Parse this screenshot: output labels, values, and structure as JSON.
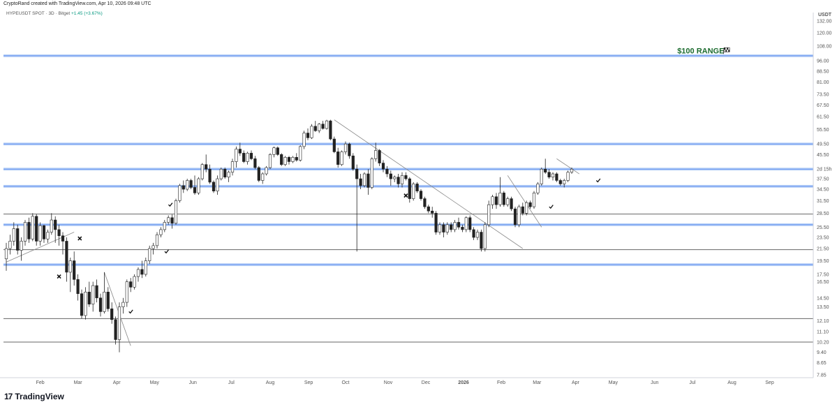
{
  "header": {
    "created_by": "CryptoRand created with TradingView.com, Apr 10, 2026 09:48 UTC",
    "symbol": "HYPEUSDT SPOT · 3D · Bitget",
    "change": "+1.45 (+3.67%)"
  },
  "brand": {
    "logo": "17",
    "name": "TradingView"
  },
  "chart_data": {
    "type": "candlestick",
    "title": "HYPEUSDT SPOT · 3D · Bitget",
    "price_unit": "USDT",
    "y_scale": "log",
    "ylim": [
      7.85,
      132.0
    ],
    "y_ticks": [
      "132.00",
      "120.00",
      "108.00",
      "96.00",
      "88.50",
      "81.00",
      "73.50",
      "67.50",
      "61.50",
      "55.50",
      "49.50",
      "45.50",
      "2d 15h",
      "37.50",
      "34.50",
      "31.50",
      "28.50",
      "25.50",
      "23.50",
      "21.50",
      "19.50",
      "17.50",
      "16.50",
      "14.50",
      "13.50",
      "12.10",
      "11.10",
      "10.20",
      "9.40",
      "8.65",
      "7.85"
    ],
    "y_tick_values": [
      132,
      120,
      108,
      96,
      88.5,
      81,
      73.5,
      67.5,
      61.5,
      55.5,
      49.5,
      45.5,
      40.5,
      37.5,
      34.5,
      31.5,
      28.5,
      25.5,
      23.5,
      21.5,
      19.5,
      17.5,
      16.5,
      14.5,
      13.5,
      12.1,
      11.1,
      10.2,
      9.4,
      8.65,
      7.85
    ],
    "x_ticks": [
      "Feb",
      "Mar",
      "Apr",
      "May",
      "Jun",
      "Jul",
      "Aug",
      "Sep",
      "Oct",
      "Nov",
      "Dec",
      "2026",
      "Feb",
      "Mar",
      "Apr",
      "May",
      "Jun",
      "Jul",
      "Aug",
      "Sep"
    ],
    "x_tick_positions": [
      9.0,
      19.0,
      29.3,
      39.3,
      49.5,
      59.7,
      70.0,
      80.2,
      90.0,
      101.3,
      111.3,
      121.3,
      131.3,
      140.8,
      151.0,
      161.0,
      172.0,
      182.0,
      192.5,
      202.5
    ],
    "bars_per_month": 10,
    "horizontal_levels": [
      {
        "price": 100.0,
        "color": "#5b8def"
      },
      {
        "price": 49.5,
        "color": "#5b8def"
      },
      {
        "price": 40.5,
        "color": "#5b8def"
      },
      {
        "price": 35.3,
        "color": "#5b8def"
      },
      {
        "price": 28.3,
        "color": "#666666"
      },
      {
        "price": 26.0,
        "color": "#5b8def"
      },
      {
        "price": 21.3,
        "color": "#666666"
      },
      {
        "price": 18.9,
        "color": "#5b8def"
      },
      {
        "price": 12.3,
        "color": "#666666"
      },
      {
        "price": 10.2,
        "color": "#666666"
      }
    ],
    "trendlines": [
      {
        "from": [
          0,
          19.3
        ],
        "to": [
          18,
          24.5
        ]
      },
      {
        "from": [
          87,
          60
        ],
        "to": [
          137,
          21.5
        ]
      },
      {
        "from": [
          133,
          38.5
        ],
        "to": [
          142,
          25.5
        ]
      },
      {
        "from": [
          26,
          17.8
        ],
        "to": [
          33,
          9.9
        ]
      },
      {
        "from": [
          146,
          44
        ],
        "to": [
          152,
          39
        ]
      }
    ],
    "annotations": [
      {
        "text": "$100 RANGE",
        "bar": 178,
        "price": 102
      },
      {
        "symbol": "cross",
        "bar": 19.5,
        "price": 23.3
      },
      {
        "symbol": "cross",
        "bar": 14,
        "price": 17.2
      },
      {
        "symbol": "cross",
        "bar": 106,
        "price": 32.8
      },
      {
        "symbol": "check",
        "bar": 33,
        "price": 13.0
      },
      {
        "symbol": "check",
        "bar": 42.5,
        "price": 21.0
      },
      {
        "symbol": "check",
        "bar": 43.5,
        "price": 30.5
      },
      {
        "symbol": "check",
        "bar": 144.5,
        "price": 30.0
      },
      {
        "symbol": "check",
        "bar": 157,
        "price": 37.0
      }
    ],
    "candles": [
      [
        19.8,
        22.5,
        18.0,
        21.5
      ],
      [
        21.5,
        24.0,
        20.5,
        22.8
      ],
      [
        22.8,
        26.5,
        22.0,
        25.2
      ],
      [
        25.2,
        26.0,
        20.5,
        21.2
      ],
      [
        21.2,
        23.5,
        19.5,
        22.8
      ],
      [
        22.8,
        27.0,
        22.0,
        26.5
      ],
      [
        26.5,
        27.5,
        22.5,
        23.2
      ],
      [
        23.2,
        28.5,
        22.8,
        27.8
      ],
      [
        27.8,
        28.3,
        22.0,
        22.8
      ],
      [
        22.8,
        26.5,
        22.0,
        25.8
      ],
      [
        25.8,
        26.0,
        22.5,
        23.2
      ],
      [
        23.2,
        25.0,
        22.5,
        24.5
      ],
      [
        24.5,
        28.5,
        24.0,
        27.0
      ],
      [
        27.0,
        27.8,
        22.5,
        25.0
      ],
      [
        25.0,
        26.0,
        22.0,
        23.8
      ],
      [
        23.8,
        24.5,
        20.5,
        22.8
      ],
      [
        22.8,
        23.5,
        16.5,
        17.8
      ],
      [
        17.8,
        20.0,
        15.2,
        19.5
      ],
      [
        19.5,
        21.0,
        16.0,
        16.8
      ],
      [
        16.8,
        17.5,
        14.2,
        15.0
      ],
      [
        15.0,
        15.5,
        12.3,
        12.6
      ],
      [
        12.6,
        15.8,
        12.2,
        15.2
      ],
      [
        15.2,
        16.5,
        13.5,
        13.8
      ],
      [
        13.8,
        16.5,
        13.0,
        16.0
      ],
      [
        16.0,
        16.8,
        14.0,
        14.5
      ],
      [
        14.5,
        15.0,
        12.5,
        13.0
      ],
      [
        13.0,
        17.8,
        12.8,
        15.2
      ],
      [
        15.2,
        15.8,
        13.0,
        13.3
      ],
      [
        13.3,
        14.0,
        11.8,
        12.2
      ],
      [
        12.2,
        12.5,
        10.0,
        10.4
      ],
      [
        10.4,
        14.0,
        9.4,
        13.5
      ],
      [
        13.5,
        14.5,
        12.8,
        14.0
      ],
      [
        14.0,
        16.8,
        13.5,
        16.5
      ],
      [
        16.5,
        17.0,
        15.2,
        15.8
      ],
      [
        15.8,
        17.5,
        15.5,
        17.2
      ],
      [
        17.2,
        18.5,
        16.5,
        18.2
      ],
      [
        18.2,
        19.5,
        17.0,
        17.5
      ],
      [
        17.5,
        20.0,
        17.2,
        19.5
      ],
      [
        19.5,
        22.0,
        19.0,
        21.5
      ],
      [
        21.5,
        22.5,
        20.5,
        22.0
      ],
      [
        22.0,
        24.5,
        21.5,
        24.0
      ],
      [
        24.0,
        25.5,
        23.5,
        25.0
      ],
      [
        25.0,
        27.0,
        24.5,
        26.5
      ],
      [
        26.5,
        28.0,
        26.0,
        27.5
      ],
      [
        27.5,
        28.2,
        25.2,
        26.3
      ],
      [
        26.3,
        32.0,
        26.0,
        31.5
      ],
      [
        31.5,
        36.0,
        31.0,
        35.5
      ],
      [
        35.5,
        37.0,
        33.5,
        34.5
      ],
      [
        34.5,
        37.5,
        34.0,
        37.0
      ],
      [
        37.0,
        37.5,
        34.5,
        35.0
      ],
      [
        35.0,
        38.5,
        33.0,
        33.5
      ],
      [
        33.5,
        38.0,
        33.0,
        37.5
      ],
      [
        37.5,
        42.5,
        37.0,
        42.0
      ],
      [
        42.0,
        45.5,
        39.5,
        40.5
      ],
      [
        40.5,
        42.0,
        36.0,
        36.5
      ],
      [
        36.5,
        37.0,
        33.5,
        34.0
      ],
      [
        34.0,
        38.5,
        33.0,
        37.5
      ],
      [
        37.5,
        41.0,
        37.0,
        40.5
      ],
      [
        40.5,
        41.0,
        37.5,
        38.0
      ],
      [
        38.0,
        40.0,
        36.5,
        39.5
      ],
      [
        39.5,
        44.0,
        38.5,
        43.0
      ],
      [
        43.0,
        48.5,
        41.0,
        47.5
      ],
      [
        47.5,
        50.0,
        45.0,
        46.0
      ],
      [
        46.0,
        47.0,
        42.5,
        43.0
      ],
      [
        43.0,
        46.5,
        42.0,
        46.0
      ],
      [
        46.0,
        47.0,
        43.5,
        44.0
      ],
      [
        44.0,
        45.0,
        40.5,
        41.0
      ],
      [
        41.0,
        41.5,
        36.5,
        37.0
      ],
      [
        37.0,
        39.5,
        36.0,
        39.0
      ],
      [
        39.0,
        41.5,
        38.5,
        41.0
      ],
      [
        41.0,
        46.0,
        40.5,
        45.5
      ],
      [
        45.5,
        48.5,
        44.5,
        48.0
      ],
      [
        48.0,
        48.5,
        45.0,
        45.5
      ],
      [
        45.5,
        46.0,
        41.5,
        42.0
      ],
      [
        42.0,
        45.0,
        41.5,
        44.5
      ],
      [
        44.5,
        45.0,
        42.0,
        43.0
      ],
      [
        43.0,
        45.0,
        42.5,
        44.5
      ],
      [
        44.5,
        46.0,
        43.0,
        43.5
      ],
      [
        43.5,
        49.0,
        43.0,
        48.5
      ],
      [
        48.5,
        55.0,
        47.5,
        54.0
      ],
      [
        54.0,
        56.0,
        51.0,
        52.0
      ],
      [
        52.0,
        58.0,
        51.5,
        57.0
      ],
      [
        57.0,
        59.5,
        54.5,
        55.0
      ],
      [
        55.0,
        58.5,
        54.0,
        58.0
      ],
      [
        58.0,
        59.5,
        55.5,
        56.0
      ],
      [
        56.0,
        60.0,
        55.5,
        59.5
      ],
      [
        59.5,
        60.0,
        51.0,
        51.5
      ],
      [
        51.5,
        52.5,
        46.0,
        46.5
      ],
      [
        46.5,
        48.0,
        41.0,
        42.0
      ],
      [
        42.0,
        47.0,
        41.5,
        46.5
      ],
      [
        46.5,
        50.5,
        45.5,
        49.5
      ],
      [
        49.5,
        50.0,
        44.0,
        45.0
      ],
      [
        45.0,
        46.0,
        40.0,
        40.5
      ],
      [
        40.5,
        42.0,
        21.0,
        37.5
      ],
      [
        37.5,
        39.0,
        34.5,
        35.5
      ],
      [
        35.5,
        39.5,
        35.0,
        39.0
      ],
      [
        39.0,
        40.5,
        33.0,
        35.0
      ],
      [
        35.0,
        44.5,
        34.5,
        44.0
      ],
      [
        44.0,
        50.0,
        43.0,
        47.0
      ],
      [
        47.0,
        47.5,
        41.5,
        42.5
      ],
      [
        42.5,
        43.5,
        39.5,
        40.5
      ],
      [
        40.5,
        41.5,
        38.0,
        39.0
      ],
      [
        39.0,
        40.0,
        35.5,
        37.5
      ],
      [
        37.5,
        38.5,
        36.5,
        38.0
      ],
      [
        38.0,
        39.0,
        35.0,
        36.0
      ],
      [
        36.0,
        39.5,
        35.0,
        38.5
      ],
      [
        38.5,
        39.5,
        37.0,
        37.5
      ],
      [
        37.5,
        38.0,
        31.0,
        32.0
      ],
      [
        32.0,
        36.5,
        31.5,
        36.0
      ],
      [
        36.0,
        36.5,
        33.5,
        34.0
      ],
      [
        34.0,
        34.5,
        31.5,
        32.0
      ],
      [
        32.0,
        32.5,
        29.5,
        30.0
      ],
      [
        30.0,
        30.5,
        28.5,
        29.0
      ],
      [
        29.0,
        30.0,
        27.5,
        28.5
      ],
      [
        28.5,
        29.0,
        24.0,
        24.5
      ],
      [
        24.5,
        26.5,
        24.0,
        26.0
      ],
      [
        26.0,
        26.5,
        23.5,
        24.5
      ],
      [
        24.5,
        26.5,
        24.0,
        26.0
      ],
      [
        26.0,
        26.5,
        24.5,
        25.0
      ],
      [
        25.0,
        27.0,
        24.5,
        26.5
      ],
      [
        26.5,
        27.5,
        25.0,
        25.5
      ],
      [
        25.5,
        26.0,
        24.5,
        25.0
      ],
      [
        25.0,
        27.8,
        24.5,
        27.5
      ],
      [
        27.5,
        28.0,
        24.5,
        25.0
      ],
      [
        25.0,
        25.5,
        23.0,
        23.5
      ],
      [
        23.5,
        25.0,
        23.0,
        24.5
      ],
      [
        24.5,
        25.0,
        21.0,
        21.5
      ],
      [
        21.5,
        26.5,
        21.0,
        26.0
      ],
      [
        26.0,
        31.5,
        25.5,
        30.5
      ],
      [
        30.5,
        33.0,
        29.5,
        32.5
      ],
      [
        32.5,
        33.5,
        29.5,
        30.5
      ],
      [
        30.5,
        38.0,
        30.0,
        33.5
      ],
      [
        33.5,
        34.0,
        30.0,
        30.5
      ],
      [
        30.5,
        32.5,
        30.0,
        32.0
      ],
      [
        32.0,
        32.5,
        29.0,
        29.5
      ],
      [
        29.5,
        30.0,
        25.5,
        26.0
      ],
      [
        26.0,
        30.5,
        25.5,
        30.0
      ],
      [
        30.0,
        31.0,
        28.0,
        28.5
      ],
      [
        28.5,
        31.5,
        28.0,
        31.0
      ],
      [
        31.0,
        31.5,
        29.5,
        30.0
      ],
      [
        30.0,
        34.0,
        29.5,
        33.5
      ],
      [
        33.5,
        36.5,
        33.0,
        36.0
      ],
      [
        36.0,
        41.0,
        35.5,
        40.5
      ],
      [
        40.5,
        44.0,
        39.0,
        39.5
      ],
      [
        39.5,
        40.5,
        37.5,
        38.0
      ],
      [
        38.0,
        39.5,
        37.0,
        39.0
      ],
      [
        39.0,
        39.5,
        36.5,
        37.0
      ],
      [
        37.0,
        37.5,
        35.5,
        36.0
      ],
      [
        36.0,
        37.5,
        35.0,
        37.0
      ],
      [
        37.0,
        40.0,
        36.5,
        39.5
      ],
      [
        39.5,
        41.0,
        39.0,
        40.5
      ]
    ]
  }
}
